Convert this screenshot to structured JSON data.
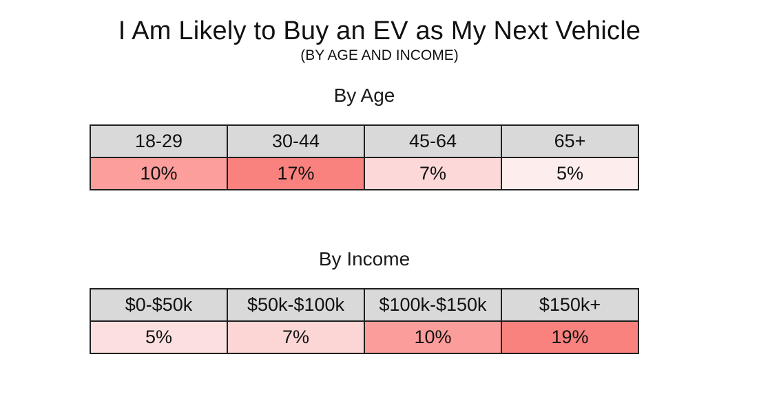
{
  "page": {
    "title": "I Am Likely to Buy an EV as My Next Vehicle",
    "subtitle": "(BY AGE AND INCOME)"
  },
  "colors": {
    "header_bg": "#d9d9d9",
    "table_border": "#1f1f1f",
    "background": "#ffffff"
  },
  "chart_data": [
    {
      "type": "heatmap",
      "title": "By Age",
      "categories": [
        "18-29",
        "30-44",
        "45-64",
        "65+"
      ],
      "values": [
        10,
        17,
        7,
        5
      ],
      "value_labels": [
        "10%",
        "17%",
        "7%",
        "5%"
      ],
      "unit": "%",
      "cell_colors": [
        "#fb9e9c",
        "#f9827f",
        "#fdd8d8",
        "#feeded"
      ]
    },
    {
      "type": "heatmap",
      "title": "By Income",
      "categories": [
        "$0-$50k",
        "$50k-$100k",
        "$100k-$150k",
        "$150k+"
      ],
      "values": [
        5,
        7,
        10,
        19
      ],
      "value_labels": [
        "5%",
        "7%",
        "10%",
        "19%"
      ],
      "unit": "%",
      "cell_colors": [
        "#fce0df",
        "#fcd5d5",
        "#fb9d9b",
        "#f9827e"
      ]
    }
  ]
}
